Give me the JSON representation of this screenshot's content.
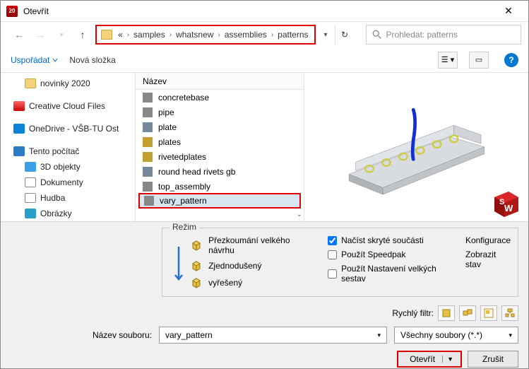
{
  "window": {
    "title": "Otevřít"
  },
  "nav": {
    "crumbs": [
      "«",
      "samples",
      "whatsnew",
      "assemblies",
      "patterns"
    ],
    "search_placeholder": "Prohledat: patterns"
  },
  "toolbar": {
    "organize": "Uspořádat",
    "newfolder": "Nová složka"
  },
  "tree": {
    "items": [
      {
        "label": "novinky 2020",
        "icon": "ic-folder",
        "indent": true
      },
      {
        "label": "Creative Cloud Files",
        "icon": "ic-cc",
        "indent": false
      },
      {
        "label": "OneDrive - VŠB-TU Ost",
        "icon": "ic-od",
        "indent": false
      },
      {
        "label": "Tento počítač",
        "icon": "ic-pc",
        "indent": false
      },
      {
        "label": "3D objekty",
        "icon": "ic-3d",
        "indent": true
      },
      {
        "label": "Dokumenty",
        "icon": "ic-doc",
        "indent": true
      },
      {
        "label": "Hudba",
        "icon": "ic-mus",
        "indent": true
      },
      {
        "label": "Obrázky",
        "icon": "ic-img",
        "indent": true
      }
    ]
  },
  "files": {
    "header": "Název",
    "rows": [
      {
        "label": "concretebase",
        "sel": false
      },
      {
        "label": "pipe",
        "sel": false
      },
      {
        "label": "plate",
        "sel": false
      },
      {
        "label": "plates",
        "sel": false
      },
      {
        "label": "rivetedplates",
        "sel": false
      },
      {
        "label": "round head rivets gb",
        "sel": false
      },
      {
        "label": "top_assembly",
        "sel": false
      },
      {
        "label": "vary_pattern",
        "sel": true
      }
    ]
  },
  "mode": {
    "legend": "Režim",
    "items": [
      "Přezkoumání velkého návrhu",
      "Zjednodušený",
      "vyřešený"
    ],
    "checks": [
      {
        "label": "Načíst skryté součásti",
        "checked": true
      },
      {
        "label": "Použít Speedpak",
        "checked": false
      },
      {
        "label": "Použít Nastavení velkých sestav",
        "checked": false
      }
    ],
    "cfg": [
      "Konfigurace",
      "Zobrazit stav"
    ]
  },
  "quickfilter": "Rychlý filtr:",
  "fileinput": {
    "label": "Název souboru:",
    "value": "vary_pattern",
    "type": "Všechny soubory (*.*)"
  },
  "buttons": {
    "open": "Otevřít",
    "cancel": "Zrušit"
  }
}
